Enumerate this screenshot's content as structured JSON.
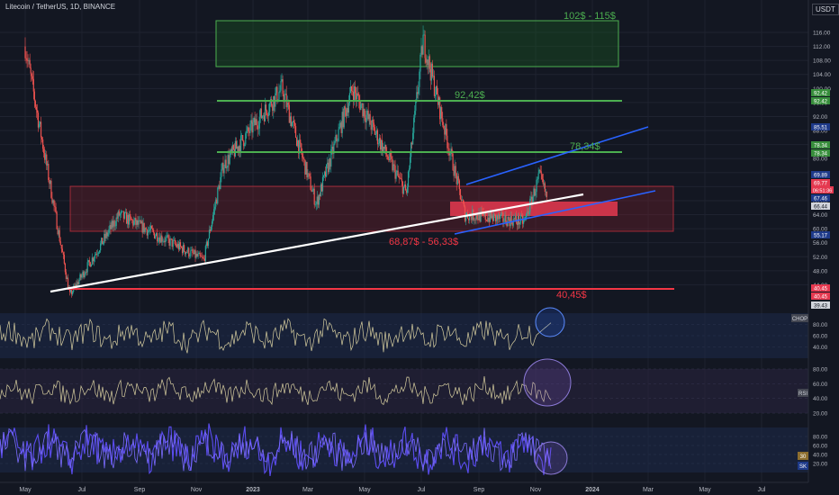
{
  "header": {
    "symbol": "Litecoin / TetherUS, 1D, BINANCE",
    "currency": "USDT"
  },
  "zones": {
    "resistance_label": "102$ - 115$",
    "level_92_label": "92,42$",
    "level_78_label": "78,34$",
    "support_zone_label": "68,87$ - 56,33$",
    "level_40_label": "40,45$"
  },
  "badges": {
    "b92a": "92.42",
    "b92b": "92.42",
    "b85": "85.51",
    "b78a": "78.34",
    "b78b": "78.34",
    "b69": "69.89",
    "b69b": "69.77",
    "b68": "06:51:36",
    "b67": "67.46",
    "b66": "66.44",
    "b55": "55.17",
    "b40a": "40.45",
    "b40b": "40.45",
    "b39": "39.43"
  },
  "indicators": {
    "pane1_tag": "CHOP",
    "pane2_tag": "RSI",
    "pane3_tag": "30",
    "pane3_tag2": "SK"
  },
  "colors": {
    "background": "#131722",
    "up": "#26a69a",
    "down": "#ef5350",
    "green_level": "#4caf50",
    "red_level": "#f23645",
    "channel": "#2962ff",
    "trend": "#ffffff",
    "osc": "#d8cfa0",
    "stoch": "#5b4cf0"
  },
  "chart_data": [
    {
      "type": "candlestick",
      "title": "Litecoin / TetherUS, 1D, BINANCE",
      "xlabel": "",
      "ylabel": "",
      "x_ticks": [
        "May",
        "Jul",
        "Sep",
        "Nov",
        "2023",
        "Mar",
        "May",
        "Jul",
        "Sep",
        "Nov",
        "2024",
        "Mar",
        "May",
        "Jul"
      ],
      "y_ticks": [
        44,
        48,
        52,
        56,
        60,
        64,
        68,
        72,
        76,
        80,
        84,
        88,
        92,
        96,
        100,
        104,
        108,
        112,
        116
      ],
      "ylim": [
        38,
        118
      ],
      "key_prices": [
        {
          "date": "2022-05",
          "price": 112
        },
        {
          "date": "2022-06-18",
          "price": 41
        },
        {
          "date": "2022-08-10",
          "price": 64
        },
        {
          "date": "2022-11-09",
          "price": 51
        },
        {
          "date": "2022-11-30",
          "price": 78
        },
        {
          "date": "2023-02-01",
          "price": 100
        },
        {
          "date": "2023-03-10",
          "price": 67
        },
        {
          "date": "2023-04-18",
          "price": 100
        },
        {
          "date": "2023-06-15",
          "price": 70
        },
        {
          "date": "2023-07-03",
          "price": 114
        },
        {
          "date": "2023-08-17",
          "price": 64
        },
        {
          "date": "2023-10-20",
          "price": 62
        },
        {
          "date": "2023-11-05",
          "price": 75
        },
        {
          "date": "2023-11-13",
          "price": 69
        }
      ],
      "levels": [
        92.42,
        78.34,
        40.45
      ],
      "zones": [
        {
          "low": 102,
          "high": 115
        },
        {
          "low": 56.33,
          "high": 68.87
        }
      ]
    },
    {
      "type": "line",
      "title": "",
      "ylim": [
        20,
        100
      ],
      "y_ticks": [
        40,
        60,
        80
      ],
      "name": "CHOP"
    },
    {
      "type": "line",
      "title": "",
      "ylim": [
        20,
        80
      ],
      "y_ticks": [
        20,
        40,
        60,
        80
      ],
      "name": "RSI"
    },
    {
      "type": "line",
      "title": "",
      "ylim": [
        0,
        100
      ],
      "y_ticks": [
        20,
        40,
        60,
        80
      ],
      "name": "Stoch"
    }
  ]
}
